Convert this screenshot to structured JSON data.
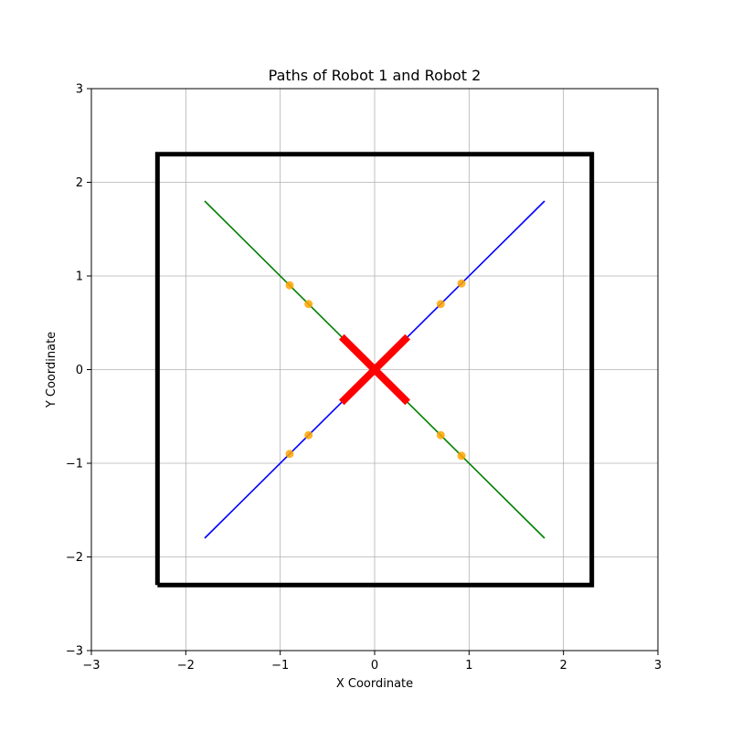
{
  "chart_data": {
    "type": "line",
    "title": "Paths of Robot 1 and Robot 2",
    "xlabel": "X Coordinate",
    "ylabel": "Y Coordinate",
    "xlim": [
      -3,
      3
    ],
    "ylim": [
      -3,
      3
    ],
    "xticks": [
      -3,
      -2,
      -1,
      0,
      1,
      2,
      3
    ],
    "yticks": [
      -3,
      -2,
      -1,
      0,
      1,
      2,
      3
    ],
    "xtick_labels": [
      "−3",
      "−2",
      "−1",
      "0",
      "1",
      "2",
      "3"
    ],
    "ytick_labels": [
      "−3",
      "−2",
      "−1",
      "0",
      "1",
      "2",
      "3"
    ],
    "grid": true,
    "series": [
      {
        "color": "#0000ff",
        "points": [
          [
            -1.8,
            -1.8
          ],
          [
            1.8,
            1.8
          ]
        ]
      },
      {
        "color": "#008000",
        "points": [
          [
            -1.8,
            1.8
          ],
          [
            1.8,
            -1.8
          ]
        ]
      }
    ],
    "boundary": {
      "color": "#000000",
      "points": [
        [
          -2.3,
          -2.3
        ],
        [
          2.3,
          -2.3
        ],
        [
          2.3,
          2.3
        ],
        [
          -2.3,
          2.3
        ],
        [
          -2.3,
          -2.3
        ]
      ]
    },
    "collision_marker": {
      "color": "#ff0000",
      "segments": [
        [
          [
            -0.35,
            -0.35
          ],
          [
            0.35,
            0.35
          ]
        ],
        [
          [
            -0.35,
            0.35
          ],
          [
            0.35,
            -0.35
          ]
        ]
      ]
    },
    "waypoints": {
      "color": "#ffa500",
      "points": [
        [
          -0.9,
          0.9
        ],
        [
          -0.7,
          0.7
        ],
        [
          0.7,
          0.7
        ],
        [
          0.92,
          0.92
        ],
        [
          -0.9,
          -0.9
        ],
        [
          -0.7,
          -0.7
        ],
        [
          0.7,
          -0.7
        ],
        [
          0.92,
          -0.92
        ]
      ]
    }
  }
}
